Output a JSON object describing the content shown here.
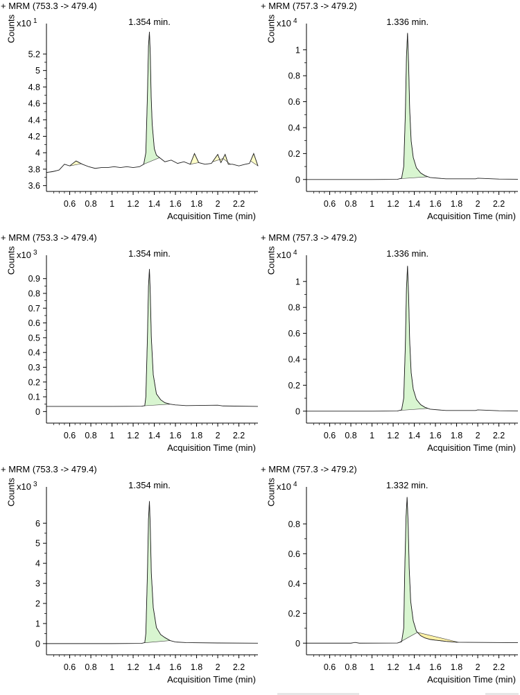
{
  "chart_data": [
    {
      "type": "line",
      "title": "+ MRM (753.3 -> 479.4)",
      "ylabel": "Counts",
      "xlabel": "Acquisition Time (min)",
      "y_multiplier_base": "x10",
      "y_multiplier_exp": "1",
      "peak_label": "1.354 min.",
      "peak_x": 1.354,
      "xlim": [
        0.38,
        2.38
      ],
      "ylim": [
        3.58,
        5.52
      ],
      "xticks": [
        0.6,
        0.8,
        1,
        1.2,
        1.4,
        1.6,
        1.8,
        2,
        2.2
      ],
      "yticks": [
        3.6,
        3.8,
        4,
        4.2,
        4.4,
        4.6,
        4.8,
        5,
        5.2
      ],
      "ytick_labels": [
        "3.6",
        "3.8",
        "4",
        "4.2",
        "4.4",
        "4.6",
        "4.8",
        "5",
        "5.2"
      ],
      "xtick_labels": [
        "0.6",
        "0.8",
        "1",
        "1.2",
        "1.4",
        "1.6",
        "1.8",
        "2",
        "2.2"
      ],
      "series": [
        {
          "x": [
            0.38,
            0.44,
            0.5,
            0.55,
            0.6,
            0.66,
            0.72,
            0.78,
            0.84,
            0.9,
            0.96,
            1.02,
            1.08,
            1.14,
            1.2,
            1.26,
            1.3,
            1.32,
            1.335,
            1.345,
            1.354,
            1.362,
            1.37,
            1.38,
            1.4,
            1.42,
            1.46,
            1.5,
            1.56,
            1.62,
            1.68,
            1.74,
            1.78,
            1.82,
            1.88,
            1.94,
            2.0,
            2.03,
            2.07,
            2.1,
            2.14,
            2.2,
            2.26,
            2.3,
            2.34,
            2.38
          ],
          "y": [
            3.76,
            3.77,
            3.79,
            3.86,
            3.84,
            3.9,
            3.86,
            3.83,
            3.81,
            3.82,
            3.82,
            3.83,
            3.82,
            3.83,
            3.82,
            3.83,
            3.86,
            4.0,
            4.7,
            5.3,
            5.47,
            5.2,
            4.7,
            4.35,
            4.05,
            3.97,
            3.93,
            3.89,
            3.91,
            3.87,
            3.89,
            3.86,
            3.99,
            3.88,
            3.86,
            3.87,
            3.98,
            3.88,
            3.98,
            3.86,
            3.86,
            3.84,
            3.86,
            3.87,
            3.99,
            3.84
          ]
        }
      ],
      "integrated_peaks": [
        {
          "x": [
            0.38,
            0.47
          ],
          "color": "#ffffc8"
        },
        {
          "x": [
            0.6,
            0.71
          ],
          "color": "#ffffc8"
        },
        {
          "x": [
            1.3,
            1.45
          ],
          "color": "#d8f5d0"
        },
        {
          "x": [
            1.45,
            1.5
          ],
          "color": "#ffffc8"
        },
        {
          "x": [
            1.74,
            1.82
          ],
          "color": "#ffffc8"
        },
        {
          "x": [
            1.95,
            2.05
          ],
          "color": "#ffffc8"
        },
        {
          "x": [
            2.05,
            2.12
          ],
          "color": "#ffffc8"
        },
        {
          "x": [
            2.31,
            2.38
          ],
          "color": "#ffffc8"
        }
      ]
    },
    {
      "type": "line",
      "title": "+ MRM (757.3 -> 479.2)",
      "ylabel": "Counts",
      "xlabel": "Acquisition Time (min)",
      "y_multiplier_base": "x10",
      "y_multiplier_exp": "4",
      "peak_label": "1.336 min.",
      "peak_x": 1.336,
      "xlim": [
        0.38,
        2.38
      ],
      "ylim": [
        -0.06,
        1.17
      ],
      "xticks": [
        0.6,
        0.8,
        1,
        1.2,
        1.4,
        1.6,
        1.8,
        2,
        2.2
      ],
      "yticks": [
        0,
        0.2,
        0.4,
        0.6,
        0.8,
        1
      ],
      "ytick_labels": [
        "0",
        "0.2",
        "0.4",
        "0.6",
        "0.8",
        "1"
      ],
      "xtick_labels": [
        "0.6",
        "0.8",
        "1",
        "1.2",
        "1.4",
        "1.6",
        "1.8",
        "2",
        "2.2"
      ],
      "series": [
        {
          "x": [
            0.38,
            1.0,
            1.24,
            1.28,
            1.3,
            1.315,
            1.326,
            1.336,
            1.346,
            1.356,
            1.37,
            1.39,
            1.42,
            1.46,
            1.5,
            1.55,
            1.7,
            1.98,
            2.0,
            2.2,
            2.38
          ],
          "y": [
            0.0,
            0.0,
            0.001,
            0.01,
            0.1,
            0.5,
            0.95,
            1.13,
            0.9,
            0.55,
            0.3,
            0.17,
            0.09,
            0.05,
            0.03,
            0.015,
            0.005,
            0.005,
            0.01,
            0.003,
            0.002
          ]
        }
      ],
      "integrated_peaks": [
        {
          "x": [
            1.26,
            1.53
          ],
          "color": "#d8f5d0"
        }
      ]
    },
    {
      "type": "line",
      "title": "+ MRM (753.3 -> 479.4)",
      "ylabel": "Counts",
      "xlabel": "Acquisition Time (min)",
      "y_multiplier_base": "x10",
      "y_multiplier_exp": "3",
      "peak_label": "1.354 min.",
      "peak_x": 1.354,
      "xlim": [
        0.38,
        2.38
      ],
      "ylim": [
        -0.05,
        1.03
      ],
      "xticks": [
        0.6,
        0.8,
        1,
        1.2,
        1.4,
        1.6,
        1.8,
        2,
        2.2
      ],
      "yticks": [
        0,
        0.1,
        0.2,
        0.3,
        0.4,
        0.5,
        0.6,
        0.7,
        0.8,
        0.9
      ],
      "ytick_labels": [
        "0",
        "0.1",
        "0.2",
        "0.3",
        "0.4",
        "0.5",
        "0.6",
        "0.7",
        "0.8",
        "0.9"
      ],
      "xtick_labels": [
        "0.6",
        "0.8",
        "1",
        "1.2",
        "1.4",
        "1.6",
        "1.8",
        "2",
        "2.2"
      ],
      "series": [
        {
          "x": [
            0.38,
            1.0,
            1.28,
            1.31,
            1.32,
            1.335,
            1.345,
            1.354,
            1.362,
            1.372,
            1.39,
            1.42,
            1.46,
            1.5,
            1.55,
            1.6,
            1.7,
            2.0,
            2.05,
            2.38
          ],
          "y": [
            0.035,
            0.035,
            0.036,
            0.04,
            0.1,
            0.5,
            0.85,
            0.965,
            0.8,
            0.5,
            0.25,
            0.12,
            0.08,
            0.06,
            0.05,
            0.045,
            0.04,
            0.043,
            0.038,
            0.035
          ]
        }
      ],
      "integrated_peaks": [
        {
          "x": [
            1.3,
            1.55
          ],
          "color": "#d8f5d0"
        }
      ]
    },
    {
      "type": "line",
      "title": "+ MRM (757.3 -> 479.2)",
      "ylabel": "Counts",
      "xlabel": "Acquisition Time (min)",
      "y_multiplier_base": "x10",
      "y_multiplier_exp": "4",
      "peak_label": "1.336 min.",
      "peak_x": 1.336,
      "xlim": [
        0.38,
        2.38
      ],
      "ylim": [
        -0.06,
        1.17
      ],
      "xticks": [
        0.6,
        0.8,
        1,
        1.2,
        1.4,
        1.6,
        1.8,
        2,
        2.2
      ],
      "yticks": [
        0,
        0.2,
        0.4,
        0.6,
        0.8,
        1
      ],
      "ytick_labels": [
        "0",
        "0.2",
        "0.4",
        "0.6",
        "0.8",
        "1"
      ],
      "xtick_labels": [
        "0.6",
        "0.8",
        "1",
        "1.2",
        "1.4",
        "1.6",
        "1.8",
        "2",
        "2.2"
      ],
      "series": [
        {
          "x": [
            0.38,
            1.0,
            1.24,
            1.28,
            1.3,
            1.315,
            1.326,
            1.336,
            1.346,
            1.356,
            1.37,
            1.39,
            1.42,
            1.46,
            1.5,
            1.55,
            1.7,
            1.98,
            2.0,
            2.2,
            2.38
          ],
          "y": [
            0.0,
            0.0,
            0.001,
            0.01,
            0.1,
            0.5,
            0.95,
            1.12,
            0.9,
            0.55,
            0.3,
            0.17,
            0.09,
            0.05,
            0.03,
            0.015,
            0.005,
            0.005,
            0.01,
            0.003,
            0.002
          ]
        }
      ],
      "integrated_peaks": [
        {
          "x": [
            1.26,
            1.53
          ],
          "color": "#d8f5d0"
        }
      ]
    },
    {
      "type": "line",
      "title": "+ MRM (753.3 -> 479.4)",
      "ylabel": "Counts",
      "xlabel": "Acquisition Time (min)",
      "y_multiplier_base": "x10",
      "y_multiplier_exp": "3",
      "peak_label": "1.354 min.",
      "peak_x": 1.354,
      "xlim": [
        0.38,
        2.38
      ],
      "ylim": [
        -0.35,
        7.6
      ],
      "xticks": [
        0.6,
        0.8,
        1,
        1.2,
        1.4,
        1.6,
        1.8,
        2,
        2.2
      ],
      "yticks": [
        0,
        1,
        2,
        3,
        4,
        5,
        6
      ],
      "ytick_labels": [
        "0",
        "1",
        "2",
        "3",
        "4",
        "5",
        "6"
      ],
      "xtick_labels": [
        "0.6",
        "0.8",
        "1",
        "1.2",
        "1.4",
        "1.6",
        "1.8",
        "2",
        "2.2"
      ],
      "series": [
        {
          "x": [
            0.38,
            1.0,
            1.28,
            1.31,
            1.32,
            1.335,
            1.345,
            1.354,
            1.362,
            1.372,
            1.39,
            1.42,
            1.46,
            1.5,
            1.55,
            1.6,
            1.7,
            2.0,
            2.38
          ],
          "y": [
            0.0,
            0.0,
            0.01,
            0.05,
            0.5,
            3.5,
            6.2,
            7.1,
            5.8,
            3.5,
            1.8,
            0.8,
            0.45,
            0.3,
            0.15,
            0.08,
            0.05,
            0.03,
            0.02
          ]
        }
      ],
      "integrated_peaks": [
        {
          "x": [
            1.3,
            1.55
          ],
          "color": "#d8f5d0"
        }
      ]
    },
    {
      "type": "line",
      "title": "+ MRM (757.3 -> 479.2)",
      "ylabel": "Counts",
      "xlabel": "Acquisition Time (min)",
      "y_multiplier_base": "x10",
      "y_multiplier_exp": "4",
      "peak_label": "1.332 min.",
      "peak_x": 1.332,
      "xlim": [
        0.38,
        2.38
      ],
      "ylim": [
        -0.05,
        1.02
      ],
      "xticks": [
        0.6,
        0.8,
        1,
        1.2,
        1.4,
        1.6,
        1.8,
        2,
        2.2
      ],
      "yticks": [
        0,
        0.2,
        0.4,
        0.6,
        0.8
      ],
      "ytick_labels": [
        "0",
        "0.2",
        "0.4",
        "0.6",
        "0.8"
      ],
      "xtick_labels": [
        "0.6",
        "0.8",
        "1",
        "1.2",
        "1.4",
        "1.6",
        "1.8",
        "2",
        "2.2"
      ],
      "series": [
        {
          "x": [
            0.38,
            0.8,
            0.84,
            0.88,
            1.24,
            1.28,
            1.3,
            1.31,
            1.322,
            1.332,
            1.342,
            1.352,
            1.366,
            1.39,
            1.42,
            1.46,
            1.5,
            1.55,
            1.6,
            1.7,
            1.8,
            2.38
          ],
          "y": [
            0.0,
            0.0,
            0.005,
            0.0,
            0.001,
            0.01,
            0.1,
            0.5,
            0.85,
            0.98,
            0.8,
            0.5,
            0.28,
            0.15,
            0.08,
            0.05,
            0.035,
            0.025,
            0.02,
            0.012,
            0.006,
            0.003
          ]
        }
      ],
      "integrated_peaks": [
        {
          "x": [
            1.26,
            1.43
          ],
          "color": "#d8f5d0"
        },
        {
          "x": [
            1.43,
            1.82
          ],
          "color": "#fff2a8"
        }
      ]
    }
  ]
}
